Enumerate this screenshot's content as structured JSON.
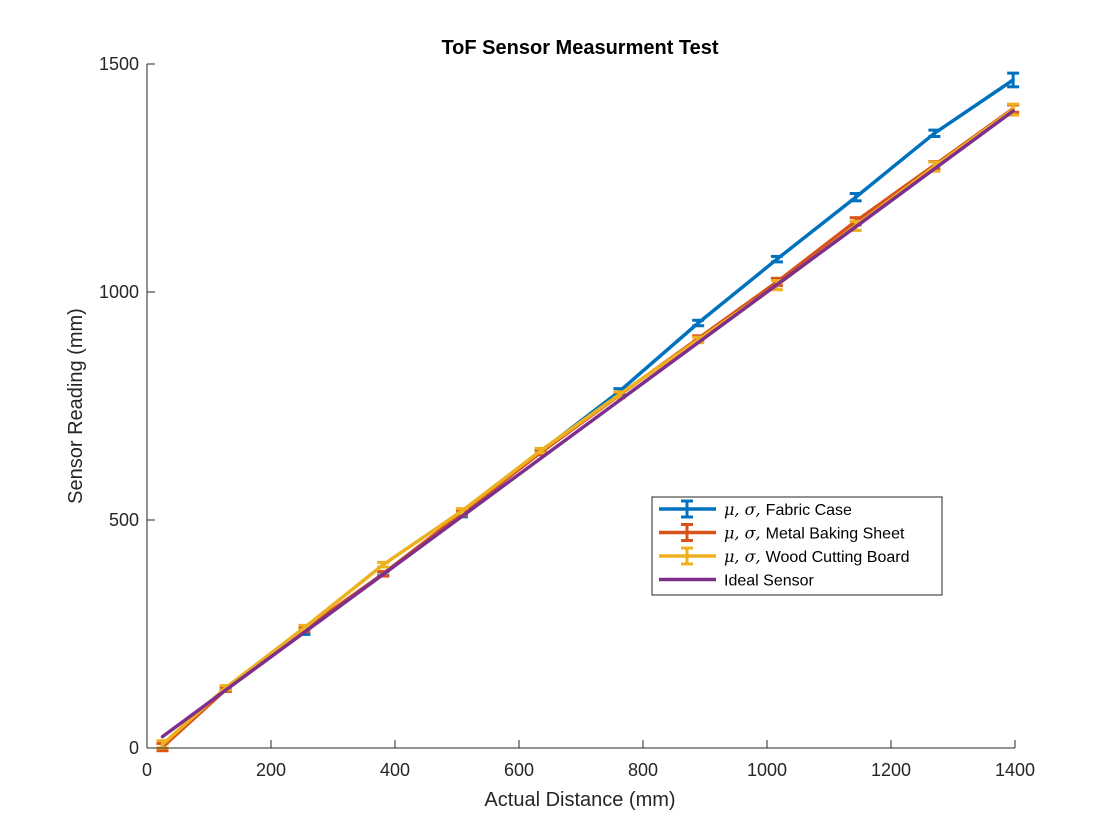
{
  "chart_data": {
    "type": "line",
    "title": "ToF Sensor Measurment Test",
    "xlabel": "Actual Distance (mm)",
    "ylabel": "Sensor Reading (mm)",
    "xlim": [
      0,
      1400
    ],
    "ylim": [
      0,
      1500
    ],
    "xticks": [
      0,
      200,
      400,
      600,
      800,
      1000,
      1200,
      1400
    ],
    "yticks": [
      0,
      500,
      1000,
      1500
    ],
    "grid": false,
    "legend_position": "center-right",
    "x": [
      25,
      127,
      254,
      381,
      508,
      635,
      762,
      889,
      1016,
      1143,
      1270,
      1397
    ],
    "series": [
      {
        "name": "μ, σ, Fabric Case",
        "legend_prefix": "μ, σ, ",
        "legend_rest": "Fabric Case",
        "color": "#0072BD",
        "errorbars": true,
        "values": [
          5,
          130,
          255,
          382,
          512,
          650,
          782,
          932,
          1072,
          1208,
          1348,
          1465
        ],
        "errors": [
          8,
          4,
          6,
          4,
          5,
          5,
          6,
          6,
          6,
          8,
          7,
          15
        ]
      },
      {
        "name": "μ, σ, Metal Baking Sheet",
        "legend_prefix": "μ, σ, ",
        "legend_rest": "Metal Baking Sheet",
        "color": "#D95319",
        "errorbars": true,
        "values": [
          2,
          128,
          260,
          382,
          515,
          648,
          774,
          898,
          1022,
          1155,
          1278,
          1402
        ],
        "errors": [
          8,
          4,
          5,
          5,
          5,
          5,
          6,
          6,
          8,
          8,
          8,
          8
        ]
      },
      {
        "name": "μ, σ, Wood Cutting Board",
        "legend_prefix": "μ, σ, ",
        "legend_rest": "Wood Cutting Board",
        "color": "#EDB120",
        "errorbars": true,
        "values": [
          8,
          132,
          264,
          402,
          520,
          652,
          775,
          895,
          1015,
          1145,
          1275,
          1400
        ],
        "errors": [
          8,
          5,
          5,
          5,
          5,
          5,
          6,
          6,
          10,
          10,
          10,
          12
        ]
      },
      {
        "name": "Ideal Sensor",
        "legend_prefix": "",
        "legend_rest": "Ideal Sensor",
        "color": "#7E2F8E",
        "errorbars": false,
        "values": [
          25,
          127,
          254,
          381,
          508,
          635,
          762,
          889,
          1016,
          1143,
          1270,
          1397
        ],
        "errors": []
      }
    ]
  }
}
